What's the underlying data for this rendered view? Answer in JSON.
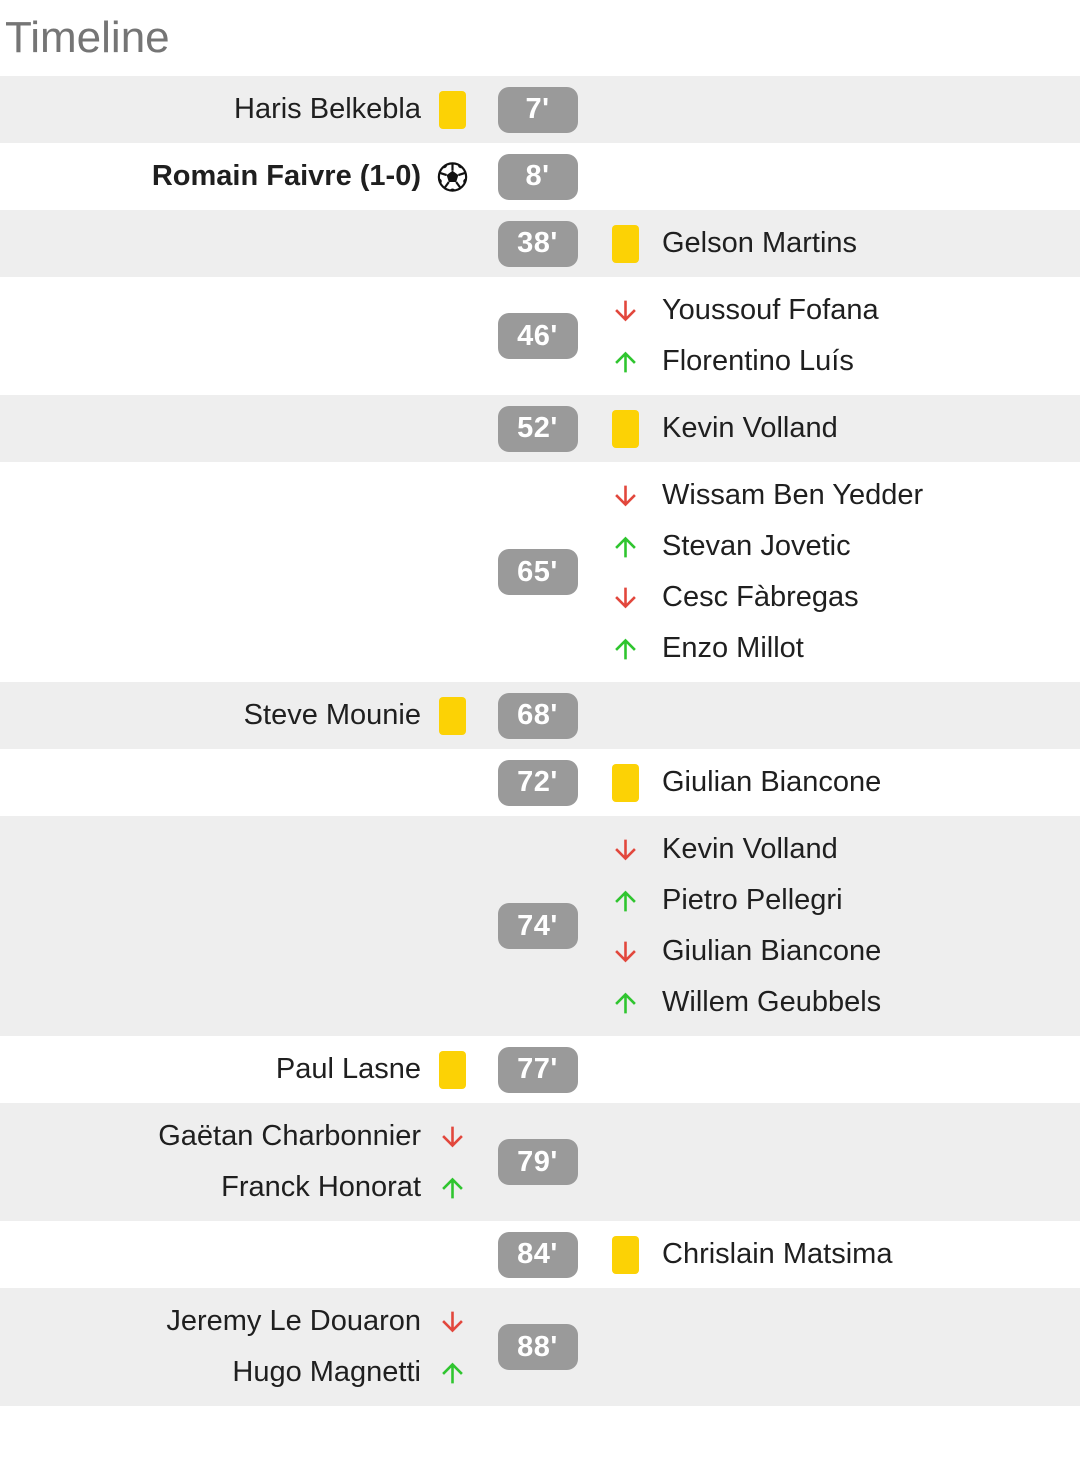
{
  "title": "Timeline",
  "colors": {
    "row_alt_bg": "#EEEEEE",
    "badge_bg": "#9A9A9A",
    "badge_text": "#FFFFFF",
    "yellow_card": "#FCD205",
    "sub_out_red": "#E2473C",
    "sub_in_green": "#2FC52F",
    "title_text": "#757575",
    "player_text": "#1F1F1F",
    "football_outline": "#111111"
  },
  "icons": {
    "goal": "football-icon",
    "yellow_card": "yellow-card-icon",
    "sub_out": "red-down-arrow-icon",
    "sub_in": "green-up-arrow-icon"
  },
  "events": [
    {
      "time": "7'",
      "side": "home",
      "items": [
        {
          "name": "Haris Belkebla",
          "icon": "yellow_card"
        }
      ]
    },
    {
      "time": "8'",
      "side": "home",
      "items": [
        {
          "name": "Romain Faivre (1-0)",
          "icon": "goal",
          "bold": true
        }
      ]
    },
    {
      "time": "38'",
      "side": "away",
      "items": [
        {
          "name": "Gelson Martins",
          "icon": "yellow_card"
        }
      ]
    },
    {
      "time": "46'",
      "side": "away",
      "items": [
        {
          "name": "Youssouf Fofana",
          "icon": "sub_out"
        },
        {
          "name": "Florentino Luís",
          "icon": "sub_in"
        }
      ]
    },
    {
      "time": "52'",
      "side": "away",
      "items": [
        {
          "name": "Kevin Volland",
          "icon": "yellow_card"
        }
      ]
    },
    {
      "time": "65'",
      "side": "away",
      "items": [
        {
          "name": "Wissam Ben Yedder",
          "icon": "sub_out"
        },
        {
          "name": "Stevan Jovetic",
          "icon": "sub_in"
        },
        {
          "name": "Cesc Fàbregas",
          "icon": "sub_out"
        },
        {
          "name": "Enzo Millot",
          "icon": "sub_in"
        }
      ]
    },
    {
      "time": "68'",
      "side": "home",
      "items": [
        {
          "name": "Steve Mounie",
          "icon": "yellow_card"
        }
      ]
    },
    {
      "time": "72'",
      "side": "away",
      "items": [
        {
          "name": "Giulian Biancone",
          "icon": "yellow_card"
        }
      ]
    },
    {
      "time": "74'",
      "side": "away",
      "items": [
        {
          "name": "Kevin Volland",
          "icon": "sub_out"
        },
        {
          "name": "Pietro Pellegri",
          "icon": "sub_in"
        },
        {
          "name": "Giulian Biancone",
          "icon": "sub_out"
        },
        {
          "name": "Willem Geubbels",
          "icon": "sub_in"
        }
      ]
    },
    {
      "time": "77'",
      "side": "home",
      "items": [
        {
          "name": "Paul Lasne",
          "icon": "yellow_card"
        }
      ]
    },
    {
      "time": "79'",
      "side": "home",
      "items": [
        {
          "name": "Gaëtan Charbonnier",
          "icon": "sub_out"
        },
        {
          "name": "Franck Honorat",
          "icon": "sub_in"
        }
      ]
    },
    {
      "time": "84'",
      "side": "away",
      "items": [
        {
          "name": "Chrislain Matsima",
          "icon": "yellow_card"
        }
      ]
    },
    {
      "time": "88'",
      "side": "home",
      "items": [
        {
          "name": "Jeremy Le Douaron",
          "icon": "sub_out"
        },
        {
          "name": "Hugo Magnetti",
          "icon": "sub_in"
        }
      ]
    }
  ]
}
